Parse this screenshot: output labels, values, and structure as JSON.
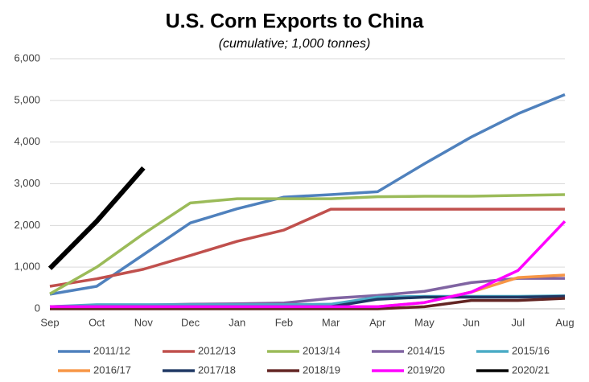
{
  "chart_data": {
    "type": "line",
    "title": "U.S. Corn Exports to China",
    "subtitle": "(cumulative; 1,000 tonnes)",
    "categories": [
      "Sep",
      "Oct",
      "Nov",
      "Dec",
      "Jan",
      "Feb",
      "Mar",
      "Apr",
      "May",
      "Jun",
      "Jul",
      "Aug"
    ],
    "ylim": [
      0,
      6000
    ],
    "yticks": [
      0,
      {
        "value": 1000,
        "label": "1,000"
      },
      {
        "value": 2000,
        "label": "2,000"
      },
      {
        "value": 3000,
        "label": "3,000"
      },
      {
        "value": 4000,
        "label": "4,000"
      },
      {
        "value": 5000,
        "label": "5,000"
      },
      {
        "value": 6000,
        "label": "6,000"
      }
    ],
    "grid": true,
    "legend": "bottom",
    "series": [
      {
        "name": "2011/12",
        "color": "#4f81bd",
        "values": [
          350,
          540,
          1300,
          2060,
          2400,
          2680,
          2740,
          2810,
          3480,
          4120,
          4680,
          5140
        ]
      },
      {
        "name": "2012/13",
        "color": "#c0504d",
        "values": [
          540,
          720,
          950,
          1280,
          1620,
          1890,
          2390,
          2390,
          2390,
          2390,
          2390,
          2390
        ]
      },
      {
        "name": "2013/14",
        "color": "#9bbb59",
        "values": [
          360,
          1000,
          1800,
          2540,
          2640,
          2640,
          2640,
          2690,
          2700,
          2700,
          2720,
          2740
        ]
      },
      {
        "name": "2014/15",
        "color": "#8064a2",
        "values": [
          50,
          80,
          90,
          110,
          120,
          140,
          250,
          320,
          420,
          630,
          730,
          730
        ]
      },
      {
        "name": "2015/16",
        "color": "#4bacc6",
        "values": [
          50,
          100,
          100,
          100,
          100,
          100,
          110,
          280,
          300,
          300,
          300,
          310
        ]
      },
      {
        "name": "2016/17",
        "color": "#f79646",
        "values": [
          50,
          50,
          50,
          50,
          50,
          50,
          50,
          50,
          150,
          400,
          750,
          810
        ]
      },
      {
        "name": "2017/18",
        "color": "#1f3864",
        "values": [
          50,
          50,
          50,
          50,
          50,
          50,
          50,
          230,
          280,
          280,
          280,
          300
        ]
      },
      {
        "name": "2018/19",
        "color": "#632523",
        "values": [
          0,
          0,
          0,
          0,
          0,
          0,
          0,
          0,
          50,
          200,
          200,
          250
        ]
      },
      {
        "name": "2019/20",
        "color": "#ff00ff",
        "values": [
          50,
          50,
          50,
          50,
          50,
          50,
          50,
          50,
          150,
          400,
          920,
          2100
        ]
      },
      {
        "name": "2020/21",
        "color": "#000000",
        "values": [
          970,
          2100,
          3380,
          null,
          null,
          null,
          null,
          null,
          null,
          null,
          null,
          null
        ]
      }
    ]
  }
}
